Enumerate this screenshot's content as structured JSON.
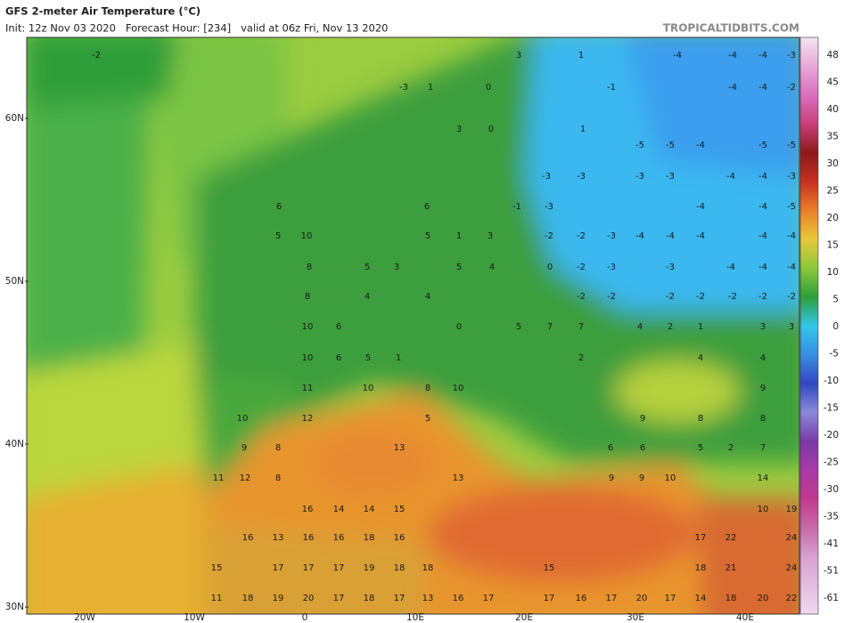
{
  "header": {
    "title": "GFS 2-meter Air Temperature (°C)",
    "subtitle": "Init: 12z Nov 03 2020   Forecast Hour: [234]   valid at 06z Fri, Nov 13 2020",
    "credit": "TROPICALTIDBITS.COM"
  },
  "map": {
    "lat_labels": [
      "60N",
      "50N",
      "40N",
      "30N"
    ],
    "lon_labels": [
      "20W",
      "10W",
      "0",
      "10E",
      "20E",
      "30E",
      "40E"
    ],
    "point_values": [
      -2,
      3,
      1,
      -4,
      -4,
      -4,
      -3,
      -3,
      1,
      0,
      -1,
      -4,
      -4,
      -2,
      3,
      0,
      1,
      -5,
      -5,
      -4,
      -5,
      -5,
      -3,
      -3,
      -3,
      -3,
      -4,
      -4,
      -3,
      6,
      6,
      -1,
      -3,
      -4,
      -4,
      -5,
      5,
      10,
      5,
      1,
      3,
      -2,
      -2,
      -3,
      -4,
      -4,
      -4,
      -4,
      -4,
      8,
      5,
      3,
      5,
      4,
      0,
      -2,
      -3,
      -3,
      -4,
      -4,
      -4,
      8,
      4,
      4,
      -2,
      -2,
      -2,
      -2,
      -2,
      -2,
      -2,
      10,
      6,
      0,
      5,
      7,
      7,
      4,
      2,
      1,
      3,
      3,
      10,
      6,
      5,
      1,
      2,
      4,
      4,
      11,
      10,
      8,
      10,
      9,
      10,
      12,
      5,
      9,
      8,
      8,
      9,
      8,
      13,
      6,
      6,
      5,
      2,
      7,
      11,
      12,
      8,
      13,
      9,
      9,
      10,
      14,
      16,
      14,
      14,
      15,
      10,
      19,
      16,
      13,
      16,
      16,
      18,
      16,
      17,
      22,
      24,
      15,
      17,
      17,
      17,
      19,
      18,
      18,
      15,
      18,
      21,
      24,
      11,
      18,
      19,
      20,
      17,
      18,
      17,
      13,
      16,
      17,
      17,
      16,
      17,
      20,
      17,
      14,
      18,
      20,
      22
    ]
  },
  "colorbar": {
    "labels": [
      48,
      45,
      40,
      35,
      30,
      25,
      20,
      15,
      10,
      5,
      0,
      -5,
      -10,
      -15,
      -20,
      -25,
      -30,
      -35,
      -41,
      -51,
      -61
    ]
  }
}
